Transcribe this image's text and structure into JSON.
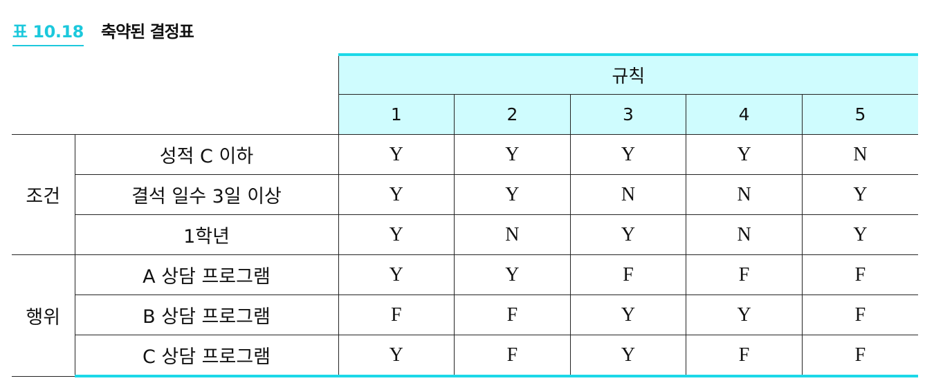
{
  "caption": {
    "number": "표 10.18",
    "title": "축약된 결정표"
  },
  "table": {
    "rules_header": "규칙",
    "rule_numbers": [
      "1",
      "2",
      "3",
      "4",
      "5"
    ],
    "groups": [
      {
        "name": "조건",
        "rows": [
          {
            "label": "성적 C 이하",
            "values": [
              "Y",
              "Y",
              "Y",
              "Y",
              "N"
            ]
          },
          {
            "label": "결석 일수 3일 이상",
            "values": [
              "Y",
              "Y",
              "N",
              "N",
              "Y"
            ]
          },
          {
            "label": "1학년",
            "values": [
              "Y",
              "N",
              "Y",
              "N",
              "Y"
            ]
          }
        ]
      },
      {
        "name": "행위",
        "rows": [
          {
            "label": "A 상담 프로그램",
            "values": [
              "Y",
              "Y",
              "F",
              "F",
              "F"
            ]
          },
          {
            "label": "B 상담 프로그램",
            "values": [
              "F",
              "F",
              "Y",
              "Y",
              "F"
            ]
          },
          {
            "label": "C 상담 프로그램",
            "values": [
              "Y",
              "F",
              "Y",
              "F",
              "F"
            ]
          }
        ]
      }
    ]
  },
  "colors": {
    "accent": "#1cd8e8",
    "header_bg": "#cffcfe"
  }
}
